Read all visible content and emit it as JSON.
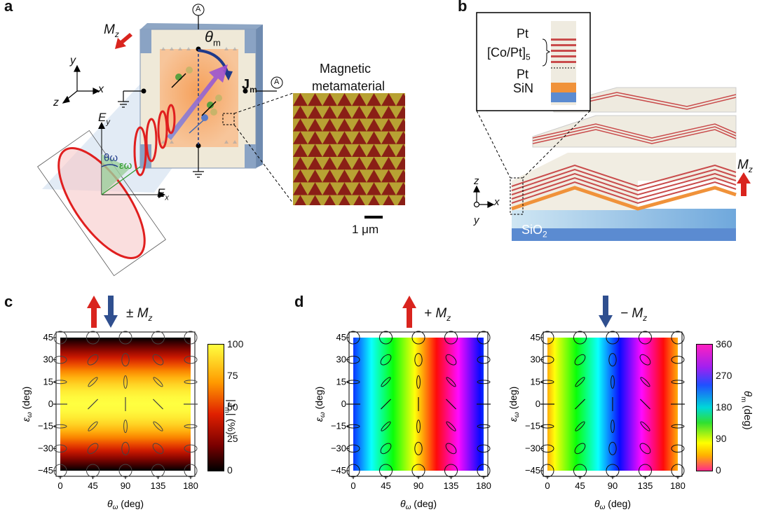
{
  "panels": {
    "a": {
      "label": "a",
      "magnetization": "M",
      "magnetization_sub": "z",
      "angle_label": "θ",
      "angle_sub": "m",
      "current_label": "J",
      "current_sub": "m",
      "ammeter": "A",
      "axis_x": "x",
      "axis_y": "y",
      "axis_z": "z",
      "field_ex": "E",
      "field_ex_sub": "x",
      "field_ey": "E",
      "field_ey_sub": "y",
      "theta_omega": "θω",
      "epsilon_omega": "εω",
      "meta_title_1": "Magnetic",
      "meta_title_2": "metamaterial",
      "scale_bar": "1 μm"
    },
    "b": {
      "label": "b",
      "layer_pt_top": "Pt",
      "layer_copt": "[Co/Pt]",
      "layer_copt_sub": "5",
      "layer_pt_bottom": "Pt",
      "layer_sin": "SiN",
      "substrate": "SiO",
      "substrate_sub": "2",
      "mz": "M",
      "mz_sub": "z",
      "axis_z": "z",
      "axis_x": "x",
      "axis_y": "y"
    },
    "c": {
      "label": "c",
      "title": "± M",
      "title_sub": "z",
      "colorbar_label": "|J",
      "colorbar_label_sub": "m",
      "colorbar_label_end": "| (%)",
      "colorbar_ticks": [
        "100",
        "75",
        "50",
        "25",
        "0"
      ]
    },
    "d": {
      "label": "d",
      "left_title": "+ M",
      "left_title_sub": "z",
      "right_title": "− M",
      "right_title_sub": "z",
      "colorbar_label": "θ",
      "colorbar_label_sub": "m",
      "colorbar_label_end": " (deg)",
      "colorbar_ticks": [
        "360",
        "270",
        "180",
        "90",
        "0"
      ]
    }
  },
  "chart_data": [
    {
      "type": "heatmap",
      "panel": "c",
      "title": "± Mz",
      "xlabel": "θω (deg)",
      "ylabel": "εω (deg)",
      "xticks": [
        "0",
        "45",
        "90",
        "135",
        "180"
      ],
      "yticks": [
        "45",
        "30",
        "15",
        "0",
        "-15",
        "-30",
        "-45"
      ],
      "xlim": [
        0,
        180
      ],
      "ylim": [
        -45,
        45
      ],
      "colorbar": {
        "label": "|Jm| (%)",
        "range": [
          0,
          100
        ],
        "ticks": [
          "100",
          "75",
          "50",
          "25",
          "0"
        ],
        "colormap": "hot"
      }
    },
    {
      "type": "heatmap",
      "panel": "d-left",
      "title": "+ Mz",
      "xlabel": "θω (deg)",
      "ylabel": "εω (deg)",
      "xticks": [
        "0",
        "45",
        "90",
        "135",
        "180"
      ],
      "yticks": [
        "45",
        "30",
        "15",
        "0",
        "-15",
        "-30",
        "-45"
      ],
      "xlim": [
        0,
        180
      ],
      "ylim": [
        -45,
        45
      ],
      "colorbar": {
        "label": "θm (deg)",
        "range": [
          0,
          360
        ],
        "ticks": [
          "360",
          "270",
          "180",
          "90",
          "0"
        ],
        "colormap": "hsv"
      }
    },
    {
      "type": "heatmap",
      "panel": "d-right",
      "title": "− Mz",
      "xlabel": "θω (deg)",
      "ylabel": "εω (deg)",
      "xticks": [
        "0",
        "45",
        "90",
        "135",
        "180"
      ],
      "yticks": [
        "45",
        "30",
        "15",
        "0",
        "-15",
        "-30",
        "-45"
      ],
      "xlim": [
        0,
        180
      ],
      "ylim": [
        -45,
        45
      ]
    }
  ]
}
